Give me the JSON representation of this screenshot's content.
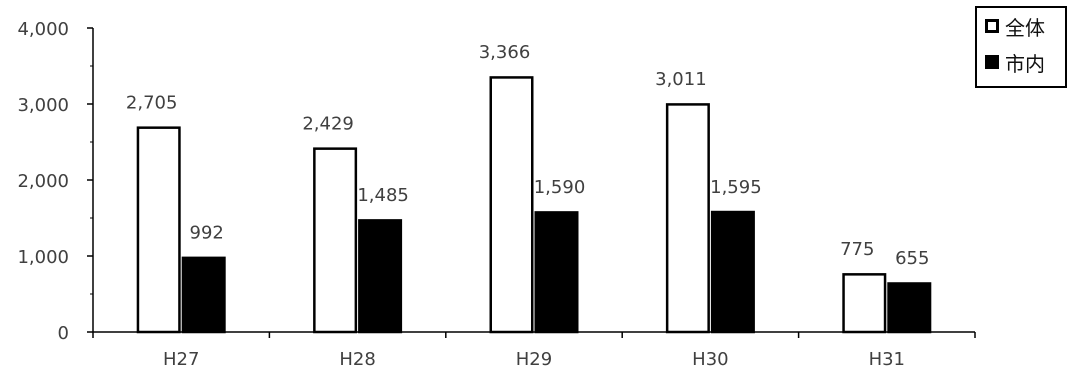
{
  "chart_data": {
    "type": "bar",
    "categories": [
      "H27",
      "H28",
      "H29",
      "H30",
      "H31"
    ],
    "series": [
      {
        "name": "全体",
        "values": [
          2705,
          2429,
          3366,
          3011,
          775
        ],
        "value_labels": [
          "2,705",
          "2,429",
          "3,366",
          "3,011",
          "775"
        ],
        "color": "#ffffff",
        "stroke": "#000000"
      },
      {
        "name": "市内",
        "values": [
          992,
          1485,
          1590,
          1595,
          655
        ],
        "value_labels": [
          "992",
          "1,485",
          "1,590",
          "1,595",
          "655"
        ],
        "color": "#000000",
        "stroke": "#000000"
      }
    ],
    "ylim": [
      0,
      4000
    ],
    "y_ticks": [
      0,
      1000,
      2000,
      3000,
      4000
    ],
    "y_tick_labels": [
      "0",
      "1,000",
      "2,000",
      "3,000",
      "4,000"
    ],
    "title": "",
    "xlabel": "",
    "ylabel": "",
    "grid": false,
    "legend_position": "top-right"
  }
}
